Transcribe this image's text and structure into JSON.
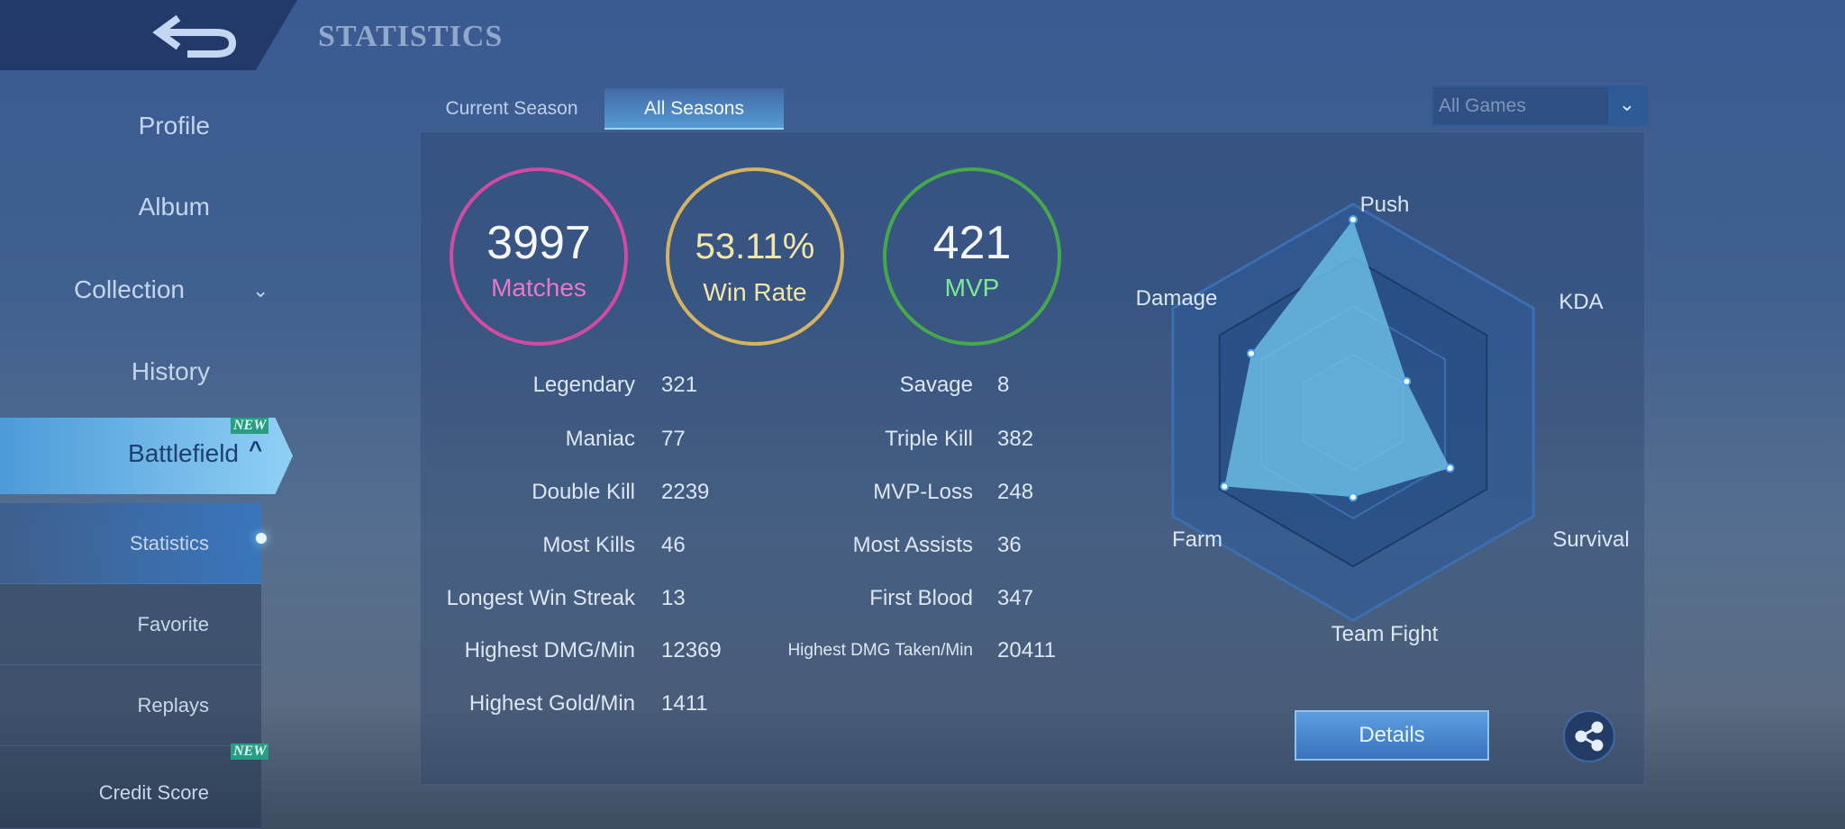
{
  "header": {
    "title": "STATISTICS"
  },
  "sidebar": {
    "items": [
      {
        "label": "Profile"
      },
      {
        "label": "Album"
      },
      {
        "label": "Collection"
      },
      {
        "label": "History"
      },
      {
        "label": "Battlefield",
        "badge": "NEW"
      }
    ],
    "sub_items": [
      {
        "label": "Statistics"
      },
      {
        "label": "Favorite"
      },
      {
        "label": "Replays"
      },
      {
        "label": "Credit Score",
        "badge": "NEW"
      }
    ]
  },
  "tabs": [
    {
      "label": "Current Season"
    },
    {
      "label": "All Seasons"
    }
  ],
  "filter": {
    "selected": "All Games"
  },
  "summary": [
    {
      "value": "3997",
      "label": "Matches",
      "color": "#d24aa2",
      "text": "#e77ac8"
    },
    {
      "value": "53.11%",
      "label": "Win Rate",
      "color": "#d4b462",
      "text": "#f2e6a8"
    },
    {
      "value": "421",
      "label": "MVP",
      "color": "#46a84c",
      "text": "#7ee89a"
    }
  ],
  "stats_left": [
    {
      "label": "Legendary",
      "value": "321"
    },
    {
      "label": "Maniac",
      "value": "77"
    },
    {
      "label": "Double Kill",
      "value": "2239"
    },
    {
      "label": "Most Kills",
      "value": "46"
    },
    {
      "label": "Longest Win Streak",
      "value": "13"
    },
    {
      "label": "Highest DMG/Min",
      "value": "12369"
    },
    {
      "label": "Highest Gold/Min",
      "value": "1411"
    }
  ],
  "stats_right": [
    {
      "label": "Savage",
      "value": "8"
    },
    {
      "label": "Triple Kill",
      "value": "382"
    },
    {
      "label": "MVP-Loss",
      "value": "248"
    },
    {
      "label": "Most Assists",
      "value": "36"
    },
    {
      "label": "First Blood",
      "value": "347"
    },
    {
      "label": "Highest DMG Taken/Min",
      "value": "20411"
    }
  ],
  "details_label": "Details",
  "chart_data": {
    "type": "radar",
    "axes": [
      "Push",
      "KDA",
      "Survival",
      "Team Fight",
      "Farm",
      "Damage"
    ],
    "values": [
      1.0,
      0.32,
      0.58,
      0.44,
      0.77,
      0.61
    ],
    "range": [
      0,
      1
    ]
  }
}
